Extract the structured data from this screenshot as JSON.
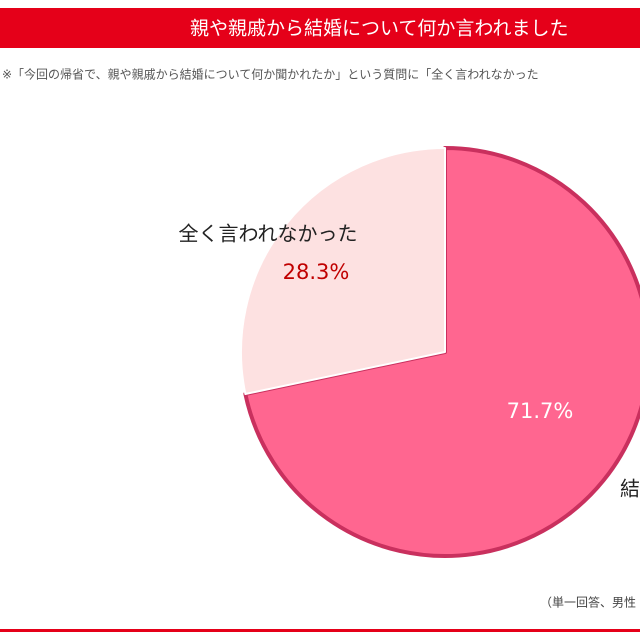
{
  "chart_data": {
    "type": "pie",
    "title": "親や親戚から結婚について何か言われました",
    "note": "※「今回の帰省で、親や親戚から結婚について何か聞かれたか」という質問に「全く言われなかった",
    "footnote": "（単一回答、男性",
    "categories": [
      "結",
      "全く言われなかった"
    ],
    "values": [
      71.7,
      28.3
    ],
    "value_labels": [
      "71.7%",
      "28.3%"
    ],
    "colors": [
      "#ff6690",
      "#fde1e1"
    ]
  }
}
